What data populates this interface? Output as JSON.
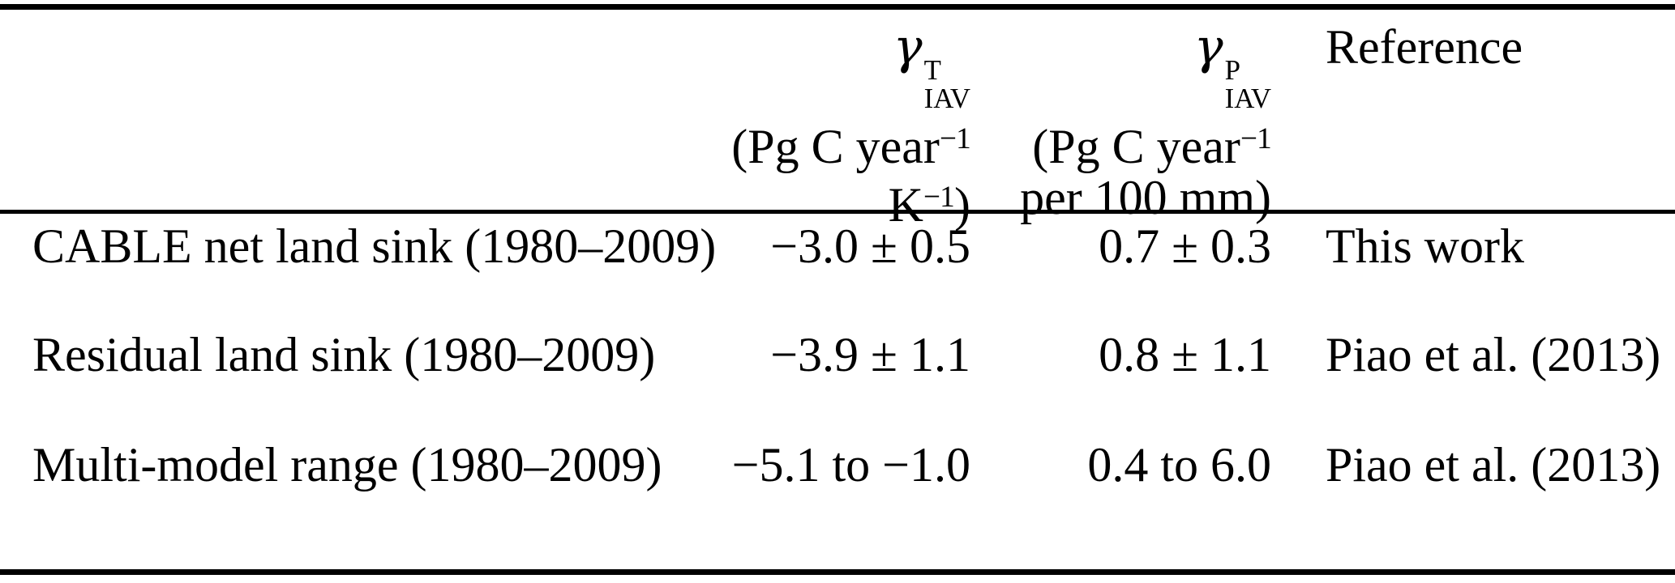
{
  "colors": {
    "background": "#ffffff",
    "text": "#000000",
    "rule": "#000000"
  },
  "table": {
    "header": {
      "gamma_t_column": {
        "symbol": {
          "base": "γ",
          "sup": "T",
          "sub": "IAV"
        },
        "unit_line1": "(Pg C year",
        "unit_line1_sup": "−1",
        "unit_line2_base": "K",
        "unit_line2_sup": "−1",
        "unit_line2_close": ")"
      },
      "gamma_p_column": {
        "symbol": {
          "base": "γ",
          "sup": "P",
          "sub": "IAV"
        },
        "unit_line1": "(Pg C year",
        "unit_line1_sup": "−1",
        "unit_line2": "per 100 mm)"
      },
      "reference_column": {
        "label": "Reference"
      }
    },
    "rows": [
      {
        "label": "CABLE net land sink (1980–2009)",
        "gamma_t": "−3.0 ± 0.5",
        "gamma_p": "0.7 ± 0.3",
        "reference": "This work"
      },
      {
        "label": "Residual land sink (1980–2009)",
        "gamma_t": "−3.9 ± 1.1",
        "gamma_p": "0.8 ± 1.1",
        "reference": "Piao et al. (2013)"
      },
      {
        "label": "Multi-model range (1980–2009)",
        "gamma_t": "−5.1 to −1.0",
        "gamma_p": "0.4 to 6.0",
        "reference": "Piao et al. (2013)"
      }
    ]
  }
}
